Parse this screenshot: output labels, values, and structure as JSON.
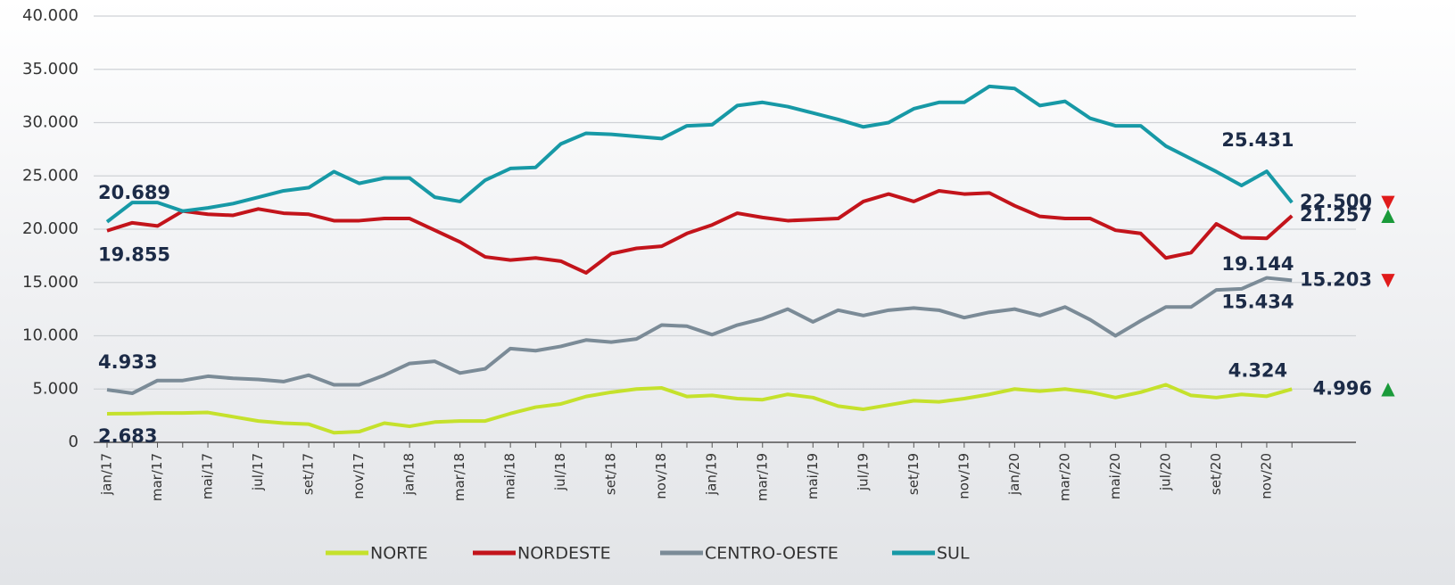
{
  "chart_data": {
    "type": "line",
    "categories": [
      "jan/17",
      null,
      "mar/17",
      null,
      "mai/17",
      null,
      "jul/17",
      null,
      "set/17",
      null,
      "nov/17",
      null,
      "jan/18",
      null,
      "mar/18",
      null,
      "mai/18",
      null,
      "jul/18",
      null,
      "set/18",
      null,
      "nov/18",
      null,
      "jan/19",
      null,
      "mar/19",
      null,
      "mai/19",
      null,
      "jul/19",
      null,
      "set/19",
      null,
      "nov/19",
      null,
      "jan/20",
      null,
      "mar/20",
      null,
      "mai/20",
      null,
      "jul/20",
      null,
      "set/20",
      null,
      "nov/20",
      null
    ],
    "ylim": [
      0,
      40000
    ],
    "yticks": [
      0,
      {
        "value": 5000,
        "label": "5.000"
      },
      {
        "value": 10000,
        "label": "10.000"
      },
      {
        "value": 15000,
        "label": "15.000"
      },
      {
        "value": 20000,
        "label": "20.000"
      },
      {
        "value": 25000,
        "label": "25.000"
      },
      {
        "value": 30000,
        "label": "30.000"
      },
      {
        "value": 35000,
        "label": "35.000"
      },
      {
        "value": 40000,
        "label": "40.000"
      }
    ],
    "grid": true,
    "series": [
      {
        "name": "NORTE",
        "color": "#c5e12c",
        "values": [
          2683,
          2700,
          2750,
          2750,
          2800,
          2400,
          2000,
          1800,
          1700,
          900,
          1000,
          1800,
          1500,
          1900,
          2000,
          2000,
          2700,
          3300,
          3600,
          4300,
          4700,
          5000,
          5100,
          4300,
          4400,
          4100,
          4000,
          4500,
          4200,
          3400,
          3100,
          3500,
          3900,
          3800,
          4100,
          4500,
          5000,
          4800,
          5000,
          4700,
          4200,
          4700,
          5400,
          4400,
          4200,
          4500,
          4324,
          4996
        ],
        "value_labels": [
          "2.683",
          null,
          null,
          null,
          null,
          null,
          null,
          null,
          null,
          null,
          null,
          null,
          null,
          null,
          null,
          null,
          null,
          null,
          null,
          null,
          null,
          null,
          null,
          null,
          null,
          null,
          null,
          null,
          null,
          null,
          null,
          null,
          null,
          null,
          null,
          null,
          null,
          null,
          null,
          null,
          null,
          null,
          null,
          null,
          null,
          null,
          "4.324",
          "4.996"
        ],
        "end_marker": "▲",
        "end_marker_color": "#1a9a3a"
      },
      {
        "name": "NORDESTE",
        "color": "#c3141b",
        "values": [
          19855,
          20600,
          20300,
          21700,
          21400,
          21300,
          21900,
          21500,
          21400,
          20800,
          20800,
          21000,
          21000,
          19900,
          18800,
          17400,
          17100,
          17300,
          17000,
          15900,
          17700,
          18200,
          18400,
          19600,
          20400,
          21500,
          21100,
          20800,
          20900,
          21000,
          22600,
          23300,
          22600,
          23600,
          23300,
          23400,
          22200,
          21200,
          21000,
          21000,
          19900,
          19600,
          17300,
          17800,
          20500,
          19200,
          19144,
          21257
        ],
        "value_labels": [
          "19.855",
          null,
          null,
          null,
          null,
          null,
          null,
          null,
          null,
          null,
          null,
          null,
          null,
          null,
          null,
          null,
          null,
          null,
          null,
          null,
          null,
          null,
          null,
          null,
          null,
          null,
          null,
          null,
          null,
          null,
          null,
          null,
          null,
          null,
          null,
          null,
          null,
          null,
          null,
          null,
          null,
          null,
          null,
          null,
          null,
          null,
          "19.144",
          "21.257"
        ],
        "end_marker": "▲",
        "end_marker_color": "#1a9a3a"
      },
      {
        "name": "CENTRO-OESTE",
        "color": "#7b8b97",
        "values": [
          4933,
          4600,
          5800,
          5800,
          6200,
          6000,
          5900,
          5700,
          6300,
          5400,
          5400,
          6300,
          7400,
          7600,
          6500,
          6900,
          8800,
          8600,
          9000,
          9600,
          9400,
          9700,
          11000,
          10900,
          10100,
          11000,
          11600,
          12500,
          11300,
          12400,
          11900,
          12400,
          12600,
          12400,
          11700,
          12200,
          12500,
          11900,
          12700,
          11500,
          10000,
          11400,
          12700,
          12700,
          14300,
          14400,
          15434,
          15203
        ],
        "value_labels": [
          "4.933",
          null,
          null,
          null,
          null,
          null,
          null,
          null,
          null,
          null,
          null,
          null,
          null,
          null,
          null,
          null,
          null,
          null,
          null,
          null,
          null,
          null,
          null,
          null,
          null,
          null,
          null,
          null,
          null,
          null,
          null,
          null,
          null,
          null,
          null,
          null,
          null,
          null,
          null,
          null,
          null,
          null,
          null,
          null,
          null,
          null,
          "15.434",
          "15.203"
        ],
        "end_marker": "▼",
        "end_marker_color": "#e01b1b"
      },
      {
        "name": "SUL",
        "color": "#1799a6",
        "values": [
          20689,
          22500,
          22500,
          21700,
          22000,
          22400,
          23000,
          23600,
          23900,
          25400,
          24300,
          24800,
          24800,
          23000,
          22600,
          24600,
          25700,
          25800,
          28000,
          29000,
          28900,
          28700,
          28500,
          29700,
          29800,
          31600,
          31900,
          31500,
          30900,
          30300,
          29600,
          30000,
          31300,
          31900,
          31900,
          33400,
          33200,
          31600,
          32000,
          30400,
          29700,
          29700,
          27800,
          26600,
          25400,
          24100,
          25431,
          22500
        ],
        "value_labels": [
          "20.689",
          null,
          null,
          null,
          null,
          null,
          null,
          null,
          null,
          null,
          null,
          null,
          null,
          null,
          null,
          null,
          null,
          null,
          null,
          null,
          null,
          null,
          null,
          null,
          null,
          null,
          null,
          null,
          null,
          null,
          null,
          null,
          null,
          null,
          null,
          null,
          null,
          null,
          null,
          null,
          null,
          null,
          null,
          null,
          null,
          null,
          "25.431",
          "22.500"
        ],
        "end_marker": "▼",
        "end_marker_color": "#e01b1b"
      }
    ]
  }
}
